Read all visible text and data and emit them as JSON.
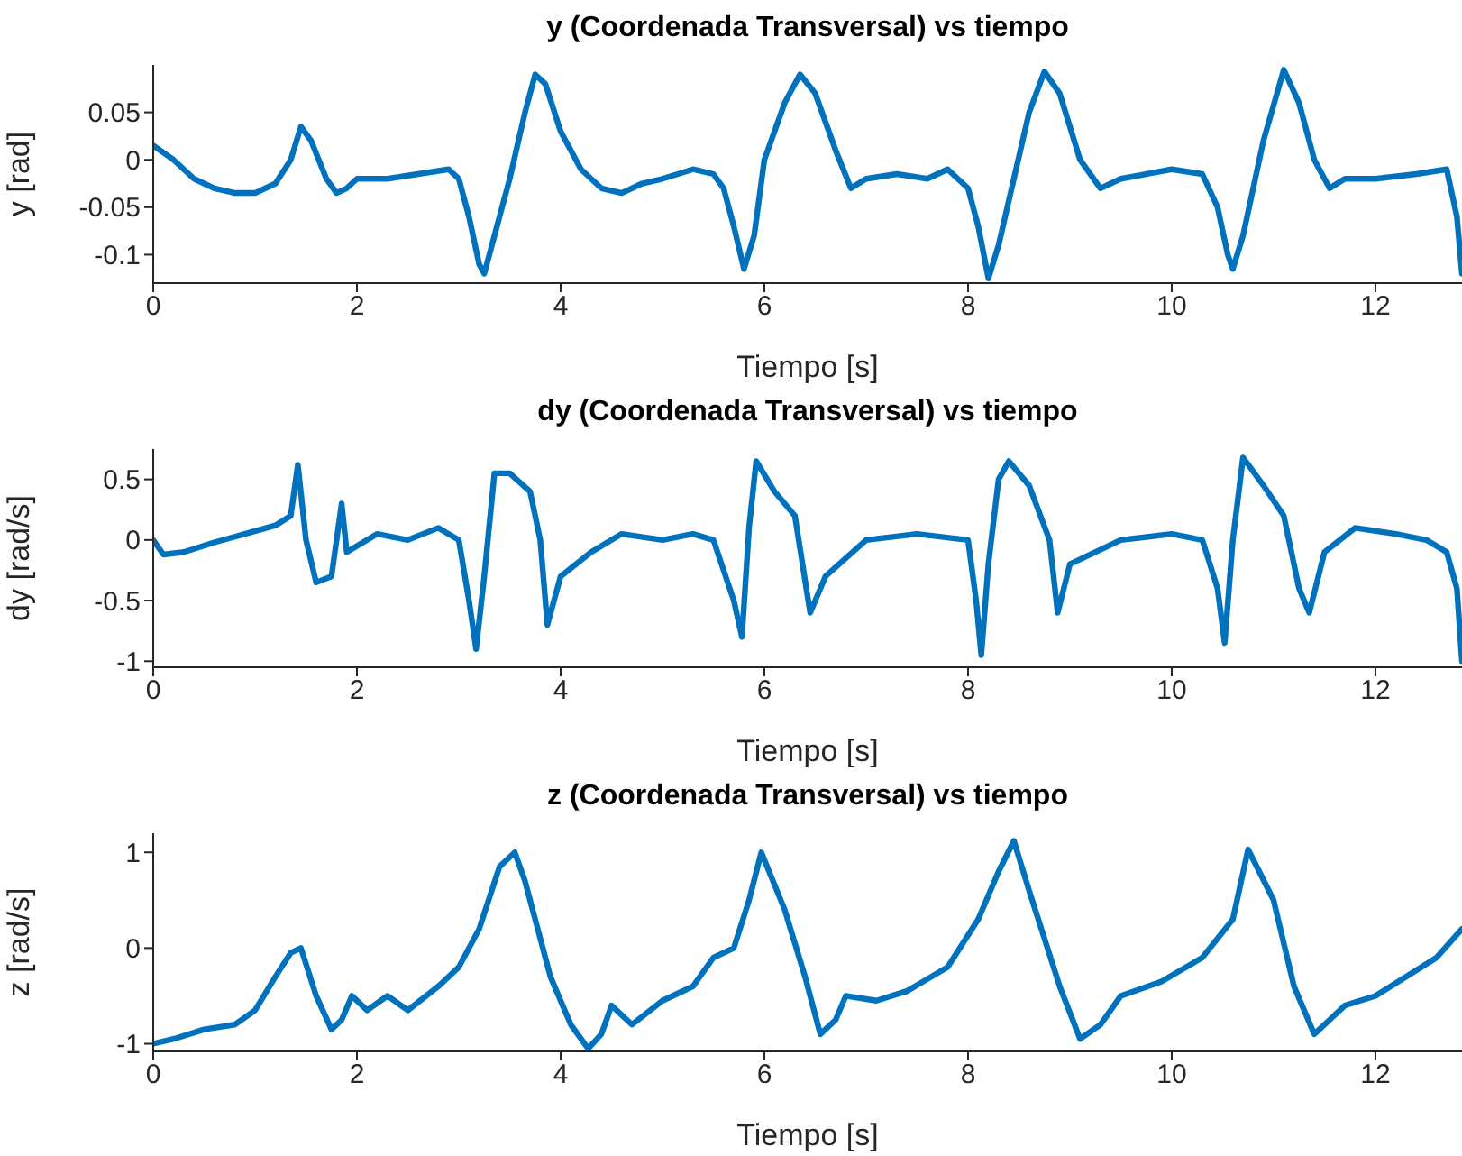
{
  "chart_data": [
    {
      "type": "line",
      "title": "y (Coordenada Transversal) vs tiempo",
      "xlabel": "Tiempo [s]",
      "ylabel": "y [rad]",
      "xlim": [
        0,
        12.85
      ],
      "xticks": [
        0,
        2,
        4,
        6,
        8,
        10,
        12
      ],
      "ylim": [
        -0.13,
        0.1
      ],
      "yticks": [
        -0.1,
        -0.05,
        0,
        0.05
      ],
      "x": [
        0,
        0.2,
        0.4,
        0.6,
        0.8,
        1.0,
        1.2,
        1.35,
        1.45,
        1.55,
        1.7,
        1.8,
        1.9,
        2.0,
        2.3,
        2.6,
        2.9,
        3.0,
        3.1,
        3.2,
        3.25,
        3.35,
        3.5,
        3.65,
        3.75,
        3.85,
        4.0,
        4.2,
        4.4,
        4.6,
        4.8,
        5.0,
        5.3,
        5.5,
        5.6,
        5.7,
        5.8,
        5.9,
        6.0,
        6.2,
        6.35,
        6.5,
        6.7,
        6.85,
        7.0,
        7.3,
        7.6,
        7.8,
        8.0,
        8.1,
        8.2,
        8.3,
        8.45,
        8.6,
        8.75,
        8.9,
        9.1,
        9.3,
        9.5,
        10.0,
        10.3,
        10.45,
        10.55,
        10.6,
        10.7,
        10.9,
        11.1,
        11.25,
        11.4,
        11.55,
        11.7,
        12.0,
        12.4,
        12.7,
        12.8,
        12.85
      ],
      "series": [
        {
          "color": "#0072bd",
          "values": [
            0.015,
            0,
            -0.02,
            -0.03,
            -0.035,
            -0.035,
            -0.025,
            0,
            0.035,
            0.02,
            -0.02,
            -0.035,
            -0.03,
            -0.02,
            -0.02,
            -0.015,
            -0.01,
            -0.02,
            -0.06,
            -0.11,
            -0.12,
            -0.08,
            -0.02,
            0.05,
            0.09,
            0.08,
            0.03,
            -0.01,
            -0.03,
            -0.035,
            -0.025,
            -0.02,
            -0.01,
            -0.015,
            -0.03,
            -0.07,
            -0.115,
            -0.08,
            0,
            0.06,
            0.09,
            0.07,
            0.01,
            -0.03,
            -0.02,
            -0.015,
            -0.02,
            -0.01,
            -0.03,
            -0.07,
            -0.125,
            -0.09,
            -0.02,
            0.05,
            0.093,
            0.07,
            0,
            -0.03,
            -0.02,
            -0.01,
            -0.015,
            -0.05,
            -0.1,
            -0.115,
            -0.08,
            0.02,
            0.095,
            0.06,
            0,
            -0.03,
            -0.02,
            -0.02,
            -0.015,
            -0.01,
            -0.06,
            -0.12
          ]
        }
      ]
    },
    {
      "type": "line",
      "title": "dy (Coordenada Transversal) vs tiempo",
      "xlabel": "Tiempo [s]",
      "ylabel": "dy [rad/s]",
      "xlim": [
        0,
        12.85
      ],
      "xticks": [
        0,
        2,
        4,
        6,
        8,
        10,
        12
      ],
      "ylim": [
        -1.05,
        0.75
      ],
      "yticks": [
        -1,
        -0.5,
        0,
        0.5
      ],
      "x": [
        0,
        0.1,
        0.3,
        0.6,
        0.9,
        1.2,
        1.35,
        1.42,
        1.5,
        1.6,
        1.75,
        1.85,
        1.9,
        2.2,
        2.5,
        2.8,
        3.0,
        3.1,
        3.17,
        3.25,
        3.35,
        3.5,
        3.7,
        3.8,
        3.87,
        4.0,
        4.3,
        4.6,
        5.0,
        5.3,
        5.5,
        5.7,
        5.78,
        5.85,
        5.92,
        6.1,
        6.3,
        6.45,
        6.6,
        7.0,
        7.5,
        8.0,
        8.08,
        8.13,
        8.2,
        8.3,
        8.4,
        8.6,
        8.8,
        8.88,
        9.0,
        9.5,
        10.0,
        10.3,
        10.45,
        10.52,
        10.6,
        10.7,
        10.9,
        11.1,
        11.25,
        11.35,
        11.5,
        11.8,
        12.2,
        12.5,
        12.7,
        12.8,
        12.85
      ],
      "series": [
        {
          "color": "#0072bd",
          "values": [
            0,
            -0.12,
            -0.1,
            -0.02,
            0.05,
            0.12,
            0.2,
            0.62,
            0,
            -0.35,
            -0.3,
            0.3,
            -0.1,
            0.05,
            0,
            0.1,
            0,
            -0.5,
            -0.9,
            -0.3,
            0.55,
            0.55,
            0.4,
            0,
            -0.7,
            -0.3,
            -0.1,
            0.05,
            0,
            0.05,
            0,
            -0.5,
            -0.8,
            0.1,
            0.65,
            0.4,
            0.2,
            -0.6,
            -0.3,
            0,
            0.05,
            0,
            -0.5,
            -0.95,
            -0.2,
            0.5,
            0.65,
            0.45,
            0,
            -0.6,
            -0.2,
            0,
            0.05,
            0,
            -0.4,
            -0.85,
            0,
            0.68,
            0.45,
            0.2,
            -0.4,
            -0.6,
            -0.1,
            0.1,
            0.05,
            0,
            -0.1,
            -0.4,
            -1
          ]
        }
      ]
    },
    {
      "type": "line",
      "title": "z (Coordenada Transversal) vs tiempo",
      "xlabel": "Tiempo [s]",
      "ylabel": "z [rad/s]",
      "xlim": [
        0,
        12.85
      ],
      "xticks": [
        0,
        2,
        4,
        6,
        8,
        10,
        12
      ],
      "ylim": [
        -1.08,
        1.2
      ],
      "yticks": [
        -1,
        0,
        1
      ],
      "x": [
        0,
        0.2,
        0.5,
        0.8,
        1.0,
        1.2,
        1.35,
        1.45,
        1.6,
        1.75,
        1.85,
        1.95,
        2.1,
        2.3,
        2.5,
        2.8,
        3.0,
        3.2,
        3.4,
        3.55,
        3.65,
        3.9,
        4.1,
        4.27,
        4.4,
        4.5,
        4.7,
        5.0,
        5.3,
        5.5,
        5.7,
        5.85,
        5.97,
        6.2,
        6.4,
        6.55,
        6.7,
        6.8,
        7.1,
        7.4,
        7.8,
        8.1,
        8.3,
        8.45,
        8.6,
        8.9,
        9.1,
        9.3,
        9.5,
        9.9,
        10.3,
        10.6,
        10.75,
        11.0,
        11.2,
        11.4,
        11.55,
        11.7,
        12.0,
        12.3,
        12.6,
        12.85
      ],
      "series": [
        {
          "color": "#0072bd",
          "values": [
            -1,
            -0.95,
            -0.85,
            -0.8,
            -0.65,
            -0.3,
            -0.05,
            0,
            -0.5,
            -0.85,
            -0.75,
            -0.5,
            -0.65,
            -0.5,
            -0.65,
            -0.4,
            -0.2,
            0.2,
            0.85,
            1.0,
            0.7,
            -0.3,
            -0.8,
            -1.05,
            -0.9,
            -0.6,
            -0.8,
            -0.55,
            -0.4,
            -0.1,
            0,
            0.5,
            1.0,
            0.4,
            -0.3,
            -0.9,
            -0.75,
            -0.5,
            -0.55,
            -0.45,
            -0.2,
            0.3,
            0.8,
            1.12,
            0.6,
            -0.4,
            -0.95,
            -0.8,
            -0.5,
            -0.35,
            -0.1,
            0.3,
            1.03,
            0.5,
            -0.4,
            -0.9,
            -0.75,
            -0.6,
            -0.5,
            -0.3,
            -0.1,
            0.2
          ]
        }
      ]
    }
  ]
}
